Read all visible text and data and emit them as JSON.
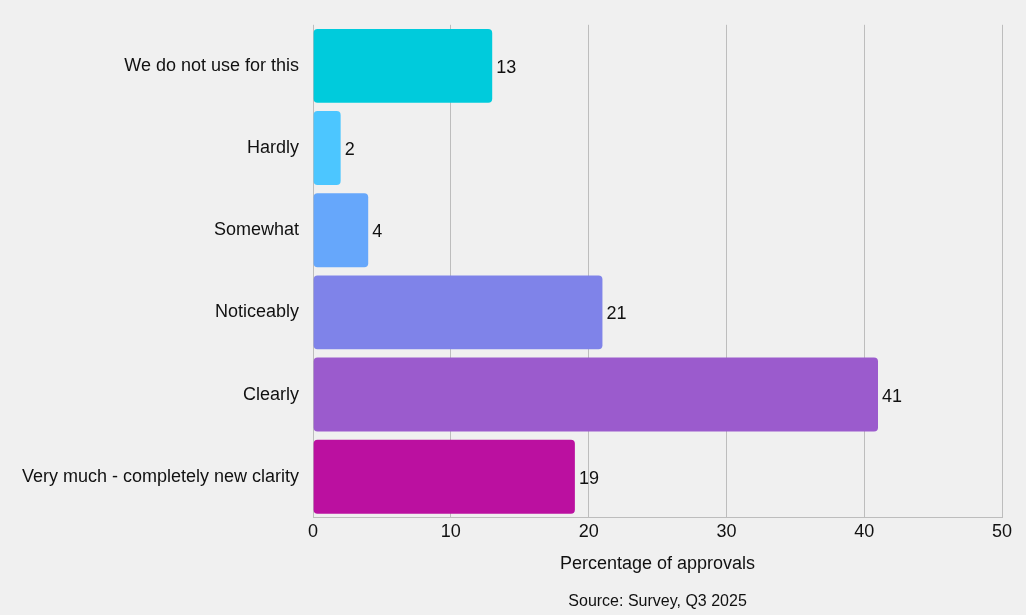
{
  "chart_data": {
    "type": "bar",
    "orientation": "horizontal",
    "categories": [
      "We do not use for this",
      "Hardly",
      "Somewhat",
      "Noticeably",
      "Clearly",
      "Very much - completely new clarity"
    ],
    "values": [
      13,
      2,
      4,
      21,
      41,
      19
    ],
    "colors": [
      "#00cbdc",
      "#4cc6ff",
      "#66a7fb",
      "#7f83e9",
      "#9b5bcd",
      "#bb10a0"
    ],
    "xlim": [
      0,
      50
    ],
    "xticks": [
      0,
      10,
      20,
      30,
      40,
      50
    ],
    "xlabel": "Percentage of approvals",
    "annotations": [
      "Source: Survey, Q3 2025"
    ],
    "grid": "x",
    "data_labels": true
  }
}
